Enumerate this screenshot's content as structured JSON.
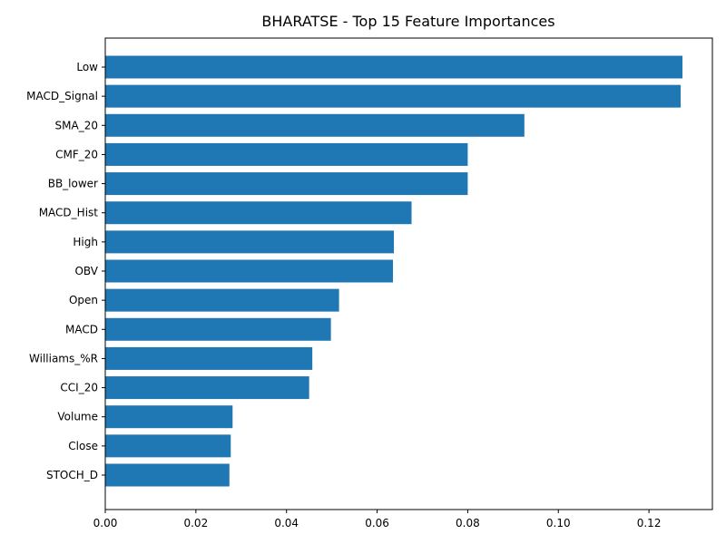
{
  "chart_data": {
    "type": "bar",
    "orientation": "horizontal",
    "title": "BHARATSE - Top 15 Feature Importances",
    "xlabel": "",
    "ylabel": "",
    "categories": [
      "Low",
      "MACD_Signal",
      "SMA_20",
      "CMF_20",
      "BB_lower",
      "MACD_Hist",
      "High",
      "OBV",
      "Open",
      "MACD",
      "Williams_%R",
      "CCI_20",
      "Volume",
      "Close",
      "STOCH_D"
    ],
    "values": [
      0.1274,
      0.127,
      0.0925,
      0.08,
      0.08,
      0.0676,
      0.0637,
      0.0635,
      0.0516,
      0.0498,
      0.0457,
      0.045,
      0.0281,
      0.0277,
      0.0274
    ],
    "xlim": [
      0,
      0.134
    ],
    "xticks": [
      "0.00",
      "0.02",
      "0.04",
      "0.06",
      "0.08",
      "0.10",
      "0.12"
    ],
    "xtick_values": [
      0,
      0.02,
      0.04,
      0.06,
      0.08,
      0.1,
      0.12
    ],
    "bar_color": "#1f77b4",
    "grid": false,
    "legend": "none"
  }
}
